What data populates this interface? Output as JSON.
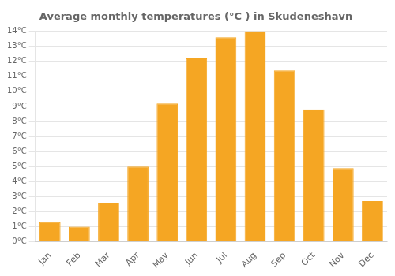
{
  "chart_data": {
    "type": "bar",
    "title": "Average monthly temperatures (°C ) in Skudeneshavn",
    "categories": [
      "Jan",
      "Feb",
      "Mar",
      "Apr",
      "May",
      "Jun",
      "Jul",
      "Aug",
      "Sep",
      "Oct",
      "Nov",
      "Dec"
    ],
    "values": [
      1.3,
      1.0,
      2.6,
      5.0,
      9.2,
      12.2,
      13.6,
      14.0,
      11.4,
      8.8,
      4.9,
      2.7
    ],
    "color": "#F5A623",
    "ylim": [
      0,
      14
    ],
    "yticks": [
      {
        "value": 0,
        "label": "0°C"
      },
      {
        "value": 1,
        "label": "1°C"
      },
      {
        "value": 2,
        "label": "2°C"
      },
      {
        "value": 3,
        "label": "3°C"
      },
      {
        "value": 4,
        "label": "4°C"
      },
      {
        "value": 5,
        "label": "5°C"
      },
      {
        "value": 6,
        "label": "6°C"
      },
      {
        "value": 7,
        "label": "7°C"
      },
      {
        "value": 8,
        "label": "8°C"
      },
      {
        "value": 9,
        "label": "9°C"
      },
      {
        "value": 10,
        "label": "10°C"
      },
      {
        "value": 11,
        "label": "11°C"
      },
      {
        "value": 12,
        "label": "12°C"
      },
      {
        "value": 13,
        "label": "13°C"
      },
      {
        "value": 14,
        "label": "14°C"
      }
    ],
    "grid": true
  }
}
